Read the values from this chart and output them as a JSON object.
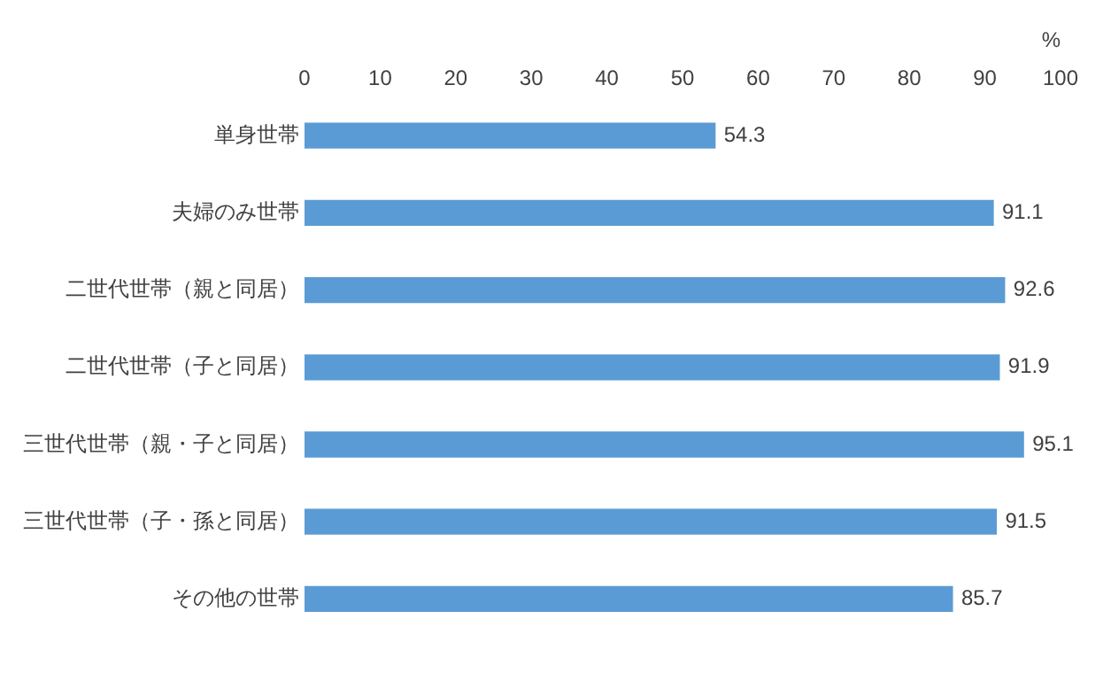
{
  "chart_data": {
    "type": "bar",
    "orientation": "horizontal",
    "xlabel": "%",
    "categories": [
      "単身世帯",
      "夫婦のみ世帯",
      "二世代世帯（親と同居）",
      "二世代世帯（子と同居）",
      "三世代世帯（親・子と同居）",
      "三世代世帯（子・孫と同居）",
      "その他の世帯"
    ],
    "values": [
      54.3,
      91.1,
      92.6,
      91.9,
      95.1,
      91.5,
      85.7
    ],
    "color": "#5b9bd5",
    "xlim": [
      0,
      100
    ],
    "xticks": [
      0,
      10,
      20,
      30,
      40,
      50,
      60,
      70,
      80,
      90,
      100
    ],
    "grid": false,
    "legend": false,
    "data_labels": true
  }
}
